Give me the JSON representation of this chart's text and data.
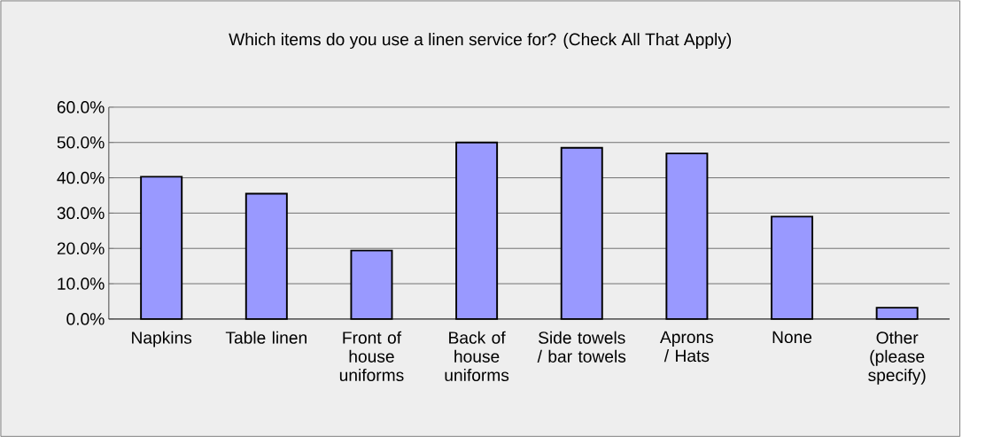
{
  "chart_data": {
    "type": "bar",
    "title": "Which items do you use a linen service for? (Check All That Apply)",
    "categories": [
      "Napkins",
      "Table linen",
      "Front of house uniforms",
      "Back of house uniforms",
      "Side towels / bar towels",
      "Aprons / Hats",
      "None",
      "Other (please specify)"
    ],
    "values": [
      40.3,
      35.5,
      19.4,
      50.0,
      48.5,
      46.9,
      29.0,
      3.2
    ],
    "color": "#9999ff",
    "ylim": [
      0,
      60
    ],
    "yticks": [
      {
        "value": 0,
        "label": "0.0%"
      },
      {
        "value": 10,
        "label": "10.0%"
      },
      {
        "value": 20,
        "label": "20.0%"
      },
      {
        "value": 30,
        "label": "30.0%"
      },
      {
        "value": 40,
        "label": "40.0%"
      },
      {
        "value": 50,
        "label": "50.0%"
      },
      {
        "value": 60,
        "label": "60.0%"
      }
    ],
    "grid": "y"
  }
}
